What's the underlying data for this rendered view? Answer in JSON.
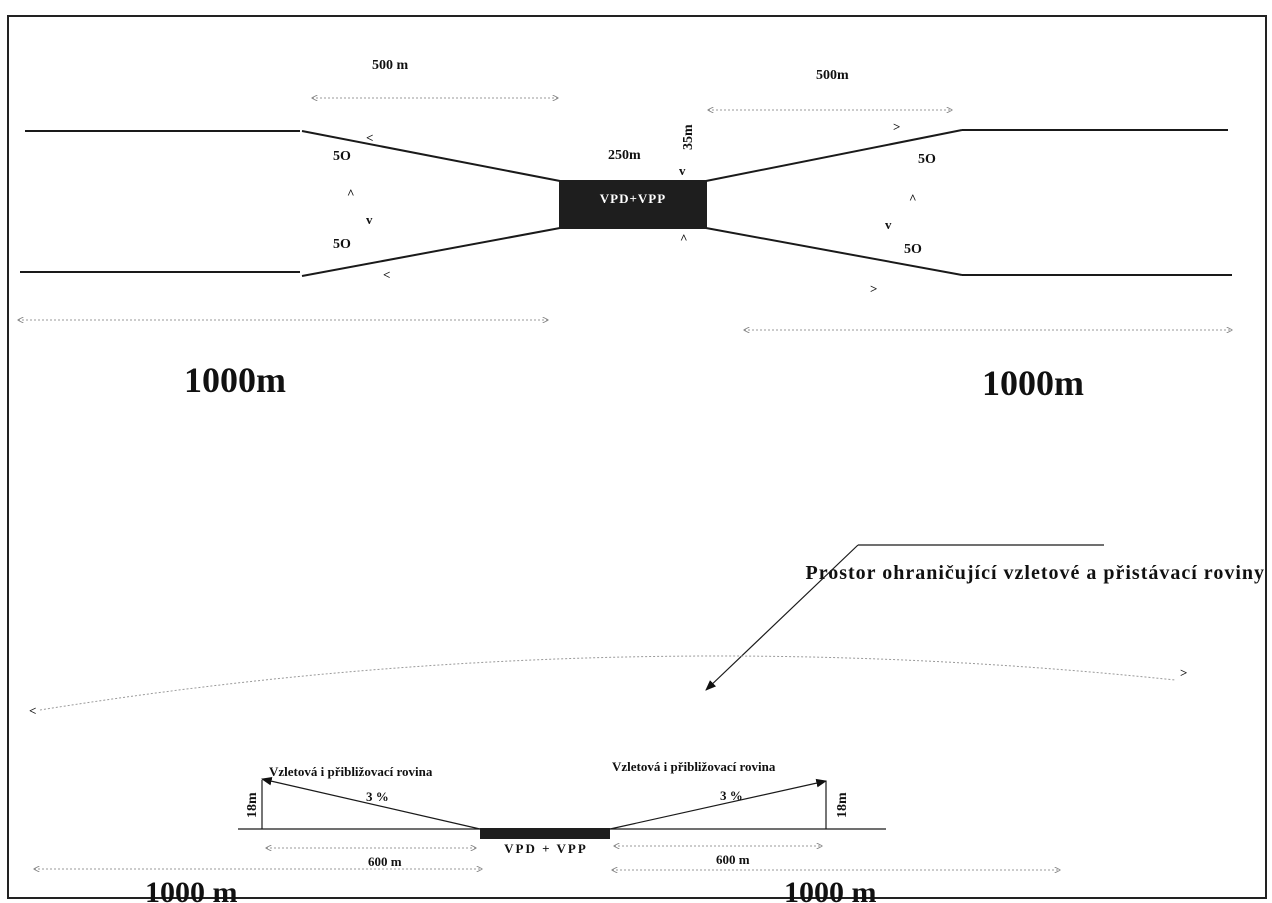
{
  "top": {
    "label_500_left": "500 m",
    "label_500_right": "500m",
    "label_250": "250m",
    "label_35": "35m",
    "runway": "VPD+VPP",
    "angle_upper_left": "5O",
    "angle_lower_left": "5O",
    "angle_upper_right": "5O",
    "angle_lower_right": "5O",
    "label_1000_left": "1000m",
    "label_1000_right": "1000m"
  },
  "caption": "Prostor ohraničující vzletové a přistávací roviny",
  "bottom": {
    "plane_left": "Vzletová i přibližovací rovina",
    "plane_right": "Vzletová i přibližovací rovina",
    "slope_left": "3 %",
    "slope_right": "3 %",
    "height_left": "18m",
    "height_right": "18m",
    "runway": "VPD + VPP",
    "label_600_left": "600 m",
    "label_600_right": "600 m",
    "label_1000_left": "1000 m",
    "label_1000_right": "1000 m"
  }
}
